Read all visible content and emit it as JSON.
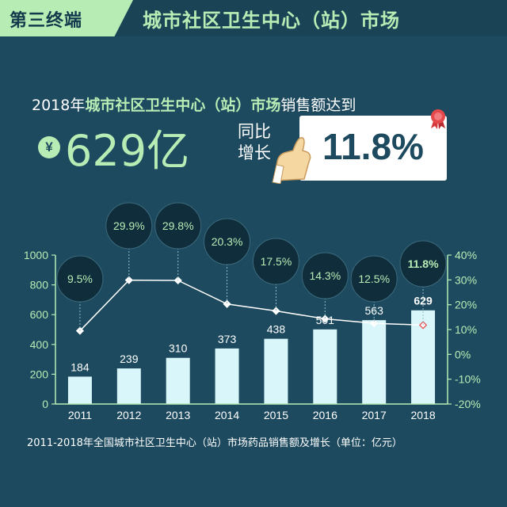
{
  "header": {
    "section_label": "第三终端",
    "title": "城市社区卫生中心（站）市场"
  },
  "summary": {
    "prefix": "2018年",
    "highlight": "城市社区卫生中心（站）市场",
    "suffix": "销售额达到",
    "currency_symbol": "¥",
    "value": "629亿",
    "yoy_label": "同比增长",
    "yoy_value": "11.8%"
  },
  "chart_data": {
    "type": "bar",
    "categories": [
      "2011",
      "2012",
      "2013",
      "2014",
      "2015",
      "2016",
      "2017",
      "2018"
    ],
    "series": [
      {
        "type": "bar",
        "values": [
          184,
          239,
          310,
          373,
          438,
          501,
          563,
          629
        ]
      },
      {
        "type": "line",
        "axis": "right",
        "values": [
          9.5,
          29.9,
          29.8,
          20.3,
          17.5,
          14.3,
          12.5,
          11.8
        ],
        "labels": [
          "9.5%",
          "29.9%",
          "29.8%",
          "20.3%",
          "17.5%",
          "14.3%",
          "12.5%",
          "11.8%"
        ]
      }
    ],
    "y_left": {
      "range": [
        0,
        1000
      ],
      "ticks": [
        "0",
        "200",
        "400",
        "600",
        "800",
        "1000"
      ]
    },
    "y_right": {
      "range": [
        -20,
        40
      ],
      "ticks": [
        "-20%",
        "-10%",
        "0%",
        "10%",
        "20%",
        "30%",
        "40%"
      ]
    },
    "caption": "2011-2018年全国城市社区卫生中心（站）市场药品销售额及增长（单位：亿元）"
  },
  "colors": {
    "background": "#1d4a5e",
    "accent": "#b8ecb5",
    "bar": "#d9f6fa",
    "bubble": "#0f2d3b",
    "line": "#ffffff"
  }
}
